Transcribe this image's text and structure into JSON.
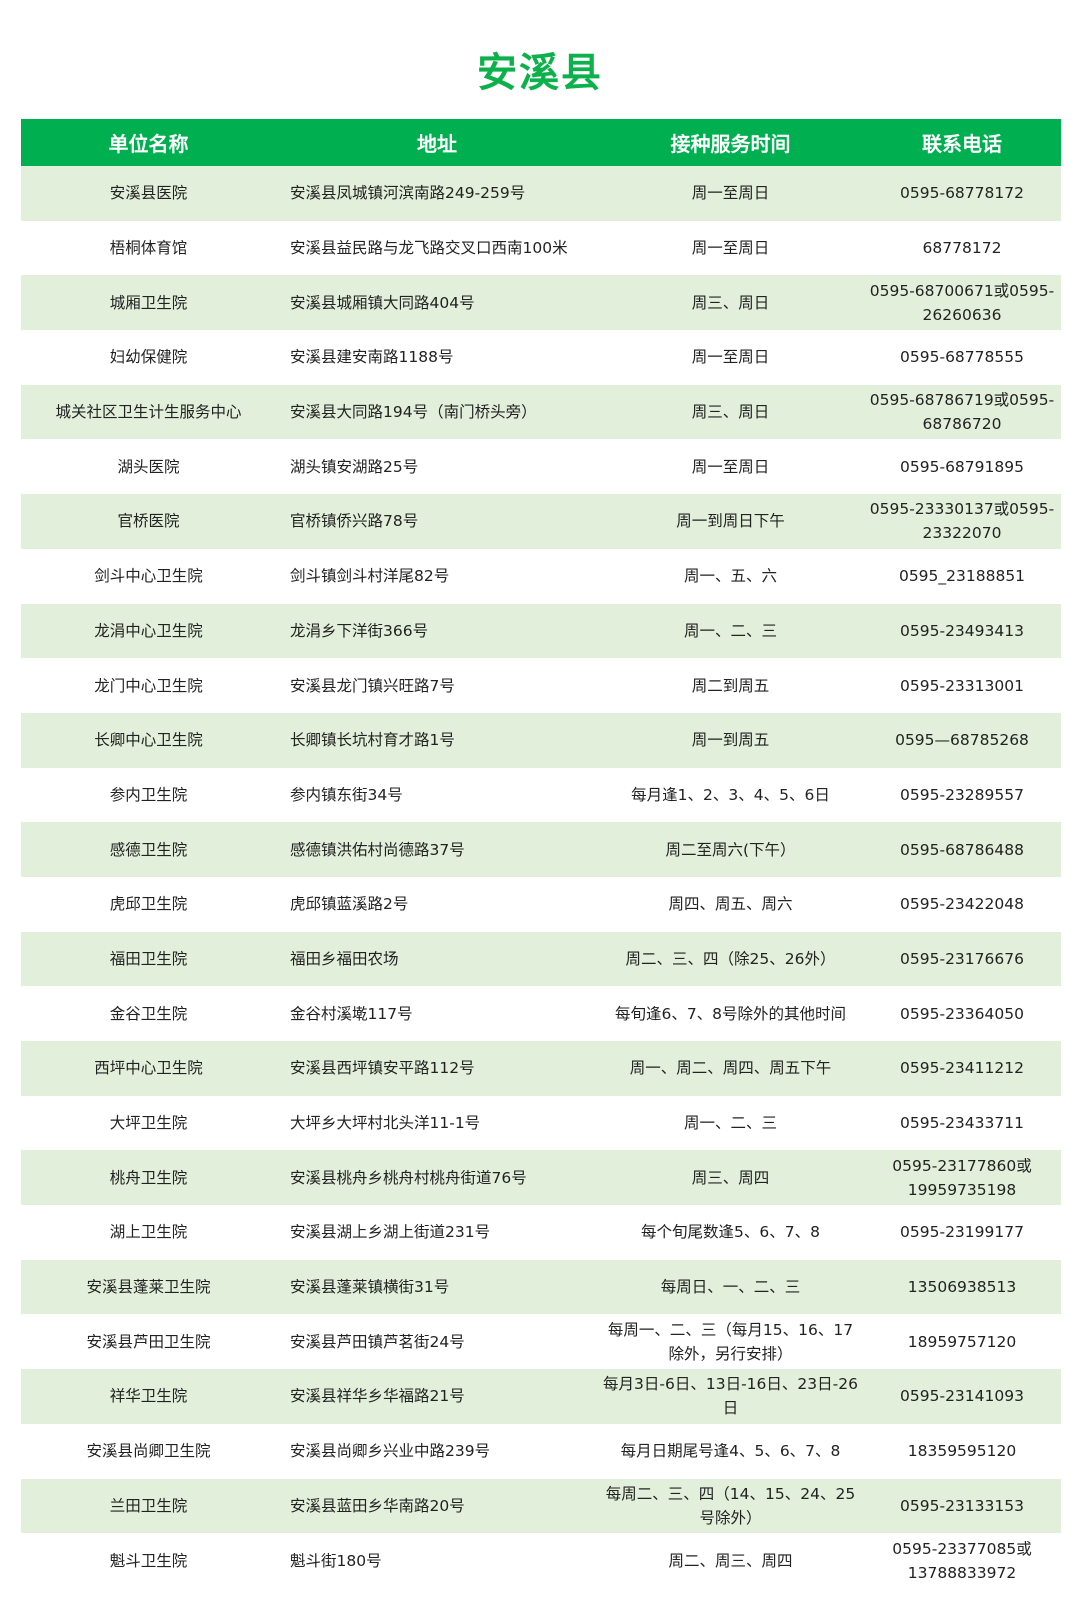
{
  "title": "安溪县",
  "header": [
    "单位名称",
    "地址",
    "接种服务时间",
    "联系电话"
  ],
  "colors": {
    "accent": "#00b050",
    "row_shade": "#e2efda"
  },
  "rows": [
    [
      "安溪县医院",
      "安溪县凤城镇河滨南路249-259号",
      "周一至周日",
      "0595-68778172"
    ],
    [
      "梧桐体育馆",
      "安溪县益民路与龙飞路交叉口西南100米",
      "周一至周日",
      "68778172"
    ],
    [
      "城厢卫生院",
      "安溪县城厢镇大同路404号",
      "周三、周日",
      "0595-68700671或0595-26260636"
    ],
    [
      "妇幼保健院",
      "安溪县建安南路1188号",
      "周一至周日",
      "0595-68778555"
    ],
    [
      "城关社区卫生计生服务中心",
      "安溪县大同路194号（南门桥头旁）",
      "周三、周日",
      "0595-68786719或0595-68786720"
    ],
    [
      "湖头医院",
      "湖头镇安湖路25号",
      "周一至周日",
      "0595-68791895"
    ],
    [
      "官桥医院",
      "官桥镇侨兴路78号",
      "周一到周日下午",
      "0595-23330137或0595-23322070"
    ],
    [
      "剑斗中心卫生院",
      "剑斗镇剑斗村洋尾82号",
      "周一、五、六",
      "0595_23188851"
    ],
    [
      "龙涓中心卫生院",
      "龙涓乡下洋街366号",
      "周一、二、三",
      "0595-23493413"
    ],
    [
      "龙门中心卫生院",
      "安溪县龙门镇兴旺路7号",
      "周二到周五",
      "0595-23313001"
    ],
    [
      "长卿中心卫生院",
      "长卿镇长坑村育才路1号",
      "周一到周五",
      "0595—68785268"
    ],
    [
      "参内卫生院",
      "参内镇东街34号",
      "每月逢1、2、3、4、5、6日",
      "0595-23289557"
    ],
    [
      "感德卫生院",
      "感德镇洪佑村尚德路37号",
      "周二至周六(下午）",
      "0595-68786488"
    ],
    [
      "虎邱卫生院",
      "虎邱镇蓝溪路2号",
      "周四、周五、周六",
      "0595-23422048"
    ],
    [
      "福田卫生院",
      "福田乡福田农场",
      "周二、三、四（除25、26外）",
      "0595-23176676"
    ],
    [
      "金谷卫生院",
      "金谷村溪墘117号",
      "每旬逢6、7、8号除外的其他时间",
      "0595-23364050"
    ],
    [
      "西坪中心卫生院",
      "安溪县西坪镇安平路112号",
      "周一、周二、周四、周五下午",
      "0595-23411212"
    ],
    [
      "大坪卫生院",
      "大坪乡大坪村北头洋11-1号",
      "周一、二、三",
      "0595-23433711"
    ],
    [
      "桃舟卫生院",
      "安溪县桃舟乡桃舟村桃舟街道76号",
      "周三、周四",
      "0595-23177860或19959735198"
    ],
    [
      "湖上卫生院",
      "安溪县湖上乡湖上街道231号",
      "每个旬尾数逢5、6、7、8",
      "0595-23199177"
    ],
    [
      "安溪县蓬莱卫生院",
      "安溪县蓬莱镇横街31号",
      "每周日、一、二、三",
      "13506938513"
    ],
    [
      "安溪县芦田卫生院",
      "安溪县芦田镇芦茗街24号",
      "每周一、二、三（每月15、16、17除外，另行安排）",
      "18959757120"
    ],
    [
      "祥华卫生院",
      "安溪县祥华乡华福路21号",
      "每月3日-6日、13日-16日、23日-26日",
      "0595-23141093"
    ],
    [
      "安溪县尚卿卫生院",
      "安溪县尚卿乡兴业中路239号",
      "每月日期尾号逢4、5、6、7、8",
      "18359595120"
    ],
    [
      "兰田卫生院",
      "安溪县蓝田乡华南路20号",
      "每周二、三、四（14、15、24、25号除外）",
      "0595-23133153"
    ],
    [
      "魁斗卫生院",
      "魁斗街180号",
      "周二、周三、周四",
      "0595-23377085或13788833972"
    ]
  ]
}
